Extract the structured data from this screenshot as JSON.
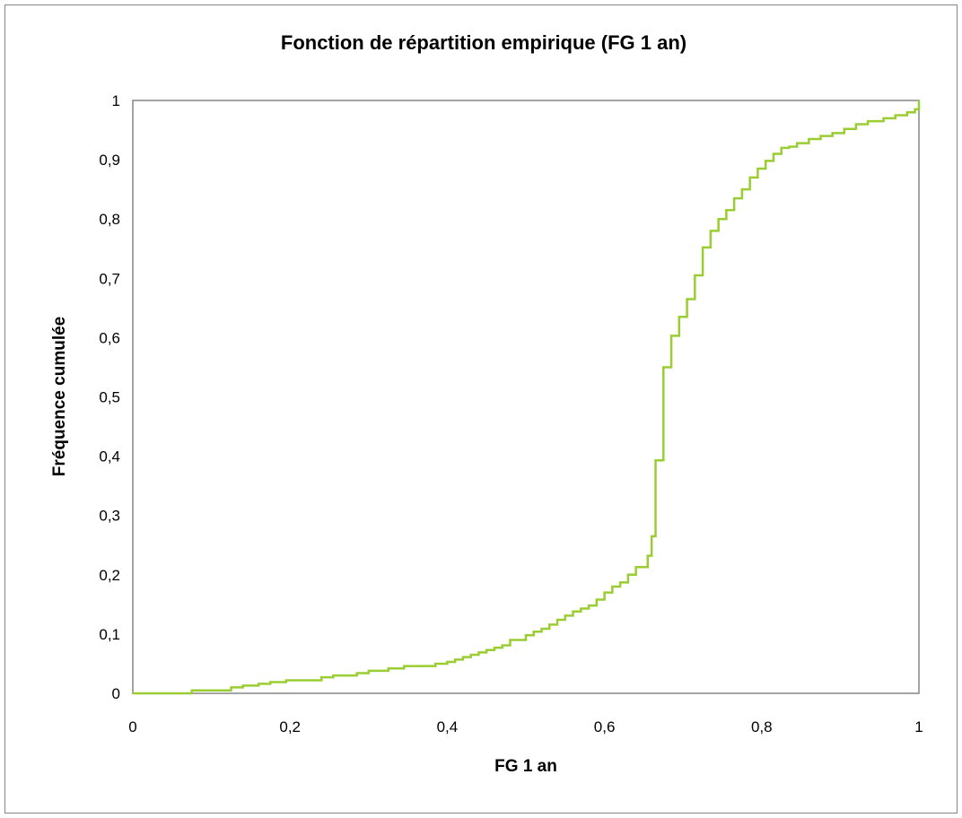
{
  "chart_data": {
    "type": "line",
    "step": true,
    "title": "Fonction de répartition  empirique  (FG 1 an)",
    "xlabel": "FG 1 an",
    "ylabel": "Fréquence cumulée",
    "xlim": [
      0,
      1
    ],
    "ylim": [
      0,
      1
    ],
    "x_ticks": [
      "0",
      "0,2",
      "0,4",
      "0,6",
      "0,8",
      "1"
    ],
    "y_ticks": [
      "0",
      "0,1",
      "0,2",
      "0,3",
      "0,4",
      "0,5",
      "0,6",
      "0,7",
      "0,8",
      "0,9",
      "1"
    ],
    "grid": false,
    "legend": "none",
    "line_color": "#9ACD32",
    "series": [
      {
        "x": [
          0,
          0.075,
          0.125,
          0.14,
          0.16,
          0.175,
          0.195,
          0.24,
          0.255,
          0.285,
          0.3,
          0.325,
          0.345,
          0.385,
          0.4,
          0.41,
          0.42,
          0.43,
          0.44,
          0.45,
          0.46,
          0.47,
          0.48,
          0.5,
          0.51,
          0.52,
          0.53,
          0.54,
          0.55,
          0.56,
          0.57,
          0.58,
          0.59,
          0.6,
          0.61,
          0.62,
          0.63,
          0.64,
          0.655,
          0.66,
          0.665,
          0.675,
          0.685,
          0.695,
          0.705,
          0.715,
          0.725,
          0.735,
          0.745,
          0.755,
          0.765,
          0.775,
          0.785,
          0.795,
          0.805,
          0.815,
          0.825,
          0.835,
          0.845,
          0.86,
          0.875,
          0.89,
          0.905,
          0.92,
          0.935,
          0.955,
          0.97,
          0.985,
          0.995,
          1.0
        ],
        "y": [
          0,
          0.005,
          0.01,
          0.013,
          0.016,
          0.019,
          0.022,
          0.027,
          0.03,
          0.034,
          0.038,
          0.042,
          0.046,
          0.05,
          0.053,
          0.057,
          0.061,
          0.065,
          0.069,
          0.073,
          0.077,
          0.081,
          0.09,
          0.098,
          0.104,
          0.109,
          0.116,
          0.124,
          0.131,
          0.138,
          0.143,
          0.148,
          0.158,
          0.17,
          0.18,
          0.187,
          0.2,
          0.213,
          0.232,
          0.265,
          0.393,
          0.55,
          0.603,
          0.635,
          0.665,
          0.705,
          0.752,
          0.78,
          0.8,
          0.815,
          0.835,
          0.85,
          0.87,
          0.885,
          0.898,
          0.91,
          0.92,
          0.922,
          0.928,
          0.935,
          0.94,
          0.945,
          0.952,
          0.96,
          0.965,
          0.97,
          0.975,
          0.98,
          0.985,
          1.0
        ]
      }
    ]
  }
}
